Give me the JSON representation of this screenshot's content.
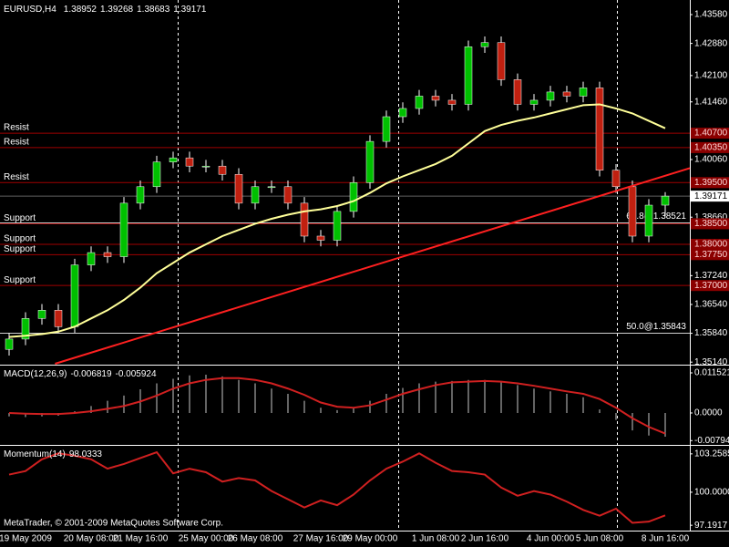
{
  "chart_data": [
    {
      "type": "candlestick",
      "title": "EURUSD,H4",
      "categories": [
        null,
        "19 May 2009",
        null,
        null,
        null,
        "20 May 08:00",
        null,
        null,
        "21 May 16:00",
        null,
        null,
        null,
        "25 May 00:00",
        null,
        null,
        "26 May 08:00",
        null,
        null,
        null,
        "27 May 16:00",
        null,
        null,
        "29 May 00:00",
        null,
        null,
        null,
        "1 Jun 08:00",
        null,
        null,
        "2 Jun 16:00",
        null,
        null,
        null,
        "4 Jun 00:00",
        null,
        null,
        "5 Jun 08:00",
        null,
        null,
        null,
        "8 Jun 16:00"
      ],
      "open": [
        1.3545,
        1.357,
        1.362,
        1.364,
        1.36,
        1.375,
        1.378,
        1.377,
        1.39,
        1.394,
        1.4,
        1.401,
        1.399,
        1.399,
        1.397,
        1.39,
        1.394,
        1.394,
        1.39,
        1.382,
        1.381,
        1.388,
        1.395,
        1.405,
        1.411,
        1.413,
        1.416,
        1.415,
        1.414,
        1.428,
        1.429,
        1.42,
        1.414,
        1.415,
        1.417,
        1.416,
        1.418,
        1.398,
        1.394,
        1.382,
        1.38952
      ],
      "high": [
        1.3585,
        1.3635,
        1.3655,
        1.3655,
        1.3765,
        1.3795,
        1.3795,
        1.3915,
        1.3955,
        1.4015,
        1.4025,
        1.4025,
        1.4005,
        1.4005,
        1.3985,
        1.3955,
        1.3955,
        1.3955,
        1.3915,
        1.3835,
        1.3895,
        1.3965,
        1.4065,
        1.4125,
        1.4145,
        1.4175,
        1.4175,
        1.4165,
        1.4295,
        1.4305,
        1.4305,
        1.4215,
        1.4165,
        1.4185,
        1.4185,
        1.4195,
        1.4195,
        1.3995,
        1.3955,
        1.391,
        1.39268
      ],
      "low": [
        1.353,
        1.3555,
        1.3605,
        1.3585,
        1.3585,
        1.3735,
        1.3755,
        1.3755,
        1.3885,
        1.3925,
        1.3985,
        1.3975,
        1.3975,
        1.3955,
        1.3885,
        1.3885,
        1.3925,
        1.3885,
        1.3805,
        1.3795,
        1.3795,
        1.3865,
        1.3935,
        1.4035,
        1.4095,
        1.4115,
        1.4135,
        1.4125,
        1.4125,
        1.4265,
        1.4185,
        1.4125,
        1.4125,
        1.4135,
        1.4145,
        1.4145,
        1.3965,
        1.3925,
        1.3805,
        1.3805,
        1.38683
      ],
      "close": [
        1.357,
        1.362,
        1.364,
        1.36,
        1.375,
        1.378,
        1.377,
        1.39,
        1.394,
        1.4,
        1.401,
        1.399,
        1.399,
        1.397,
        1.39,
        1.394,
        1.394,
        1.39,
        1.382,
        1.381,
        1.388,
        1.395,
        1.405,
        1.411,
        1.413,
        1.416,
        1.415,
        1.414,
        1.428,
        1.429,
        1.42,
        1.414,
        1.415,
        1.417,
        1.416,
        1.418,
        1.398,
        1.394,
        1.382,
        1.38952,
        1.39171
      ],
      "up_color": "#00c000",
      "down_color": "#c02010",
      "ma": {
        "color": "#ffff99",
        "values": [
          1.3575,
          1.3578,
          1.3582,
          1.3588,
          1.36,
          1.362,
          1.364,
          1.3665,
          1.3695,
          1.373,
          1.3755,
          1.378,
          1.38,
          1.382,
          1.3835,
          1.385,
          1.3862,
          1.3872,
          1.388,
          1.3885,
          1.3893,
          1.3905,
          1.3925,
          1.3948,
          1.3965,
          1.398,
          1.3995,
          1.4015,
          1.4045,
          1.4075,
          1.409,
          1.41,
          1.4108,
          1.4118,
          1.4128,
          1.4138,
          1.414,
          1.413,
          1.4118,
          1.41,
          1.4082
        ]
      },
      "trend": {
        "color": "#ff2020",
        "x": [
          2.8,
          41.5
        ],
        "y": [
          1.351,
          1.3985
        ]
      },
      "levels": [
        {
          "label": "Resist",
          "value": 1.407,
          "value_label": "1.40700"
        },
        {
          "label": "Resist",
          "value": 1.4035,
          "value_label": "1.40350"
        },
        {
          "label": "Resist",
          "value": 1.395,
          "value_label": "1.39500"
        },
        {
          "label": "Support",
          "value": 1.385,
          "value_label": "1.38500"
        },
        {
          "label": "Support",
          "value": 1.38,
          "value_label": "1.38000"
        },
        {
          "label": "Support",
          "value": 1.3775,
          "value_label": "1.37750"
        },
        {
          "label": "Support",
          "value": 1.37,
          "value_label": "1.37000"
        }
      ],
      "fibs": [
        {
          "label": "61.8@1.38521",
          "value": 1.38521
        },
        {
          "label": "50.0@1.35843",
          "value": 1.35843
        }
      ],
      "ylim": [
        1.351,
        1.4389
      ],
      "yticks": [
        {
          "value": 1.4358,
          "label": "1.43580"
        },
        {
          "value": 1.4288,
          "label": "1.42880"
        },
        {
          "value": 1.421,
          "label": "1.42100"
        },
        {
          "value": 1.4146,
          "label": "1.41460"
        },
        {
          "value": 1.4006,
          "label": "1.40060"
        },
        {
          "value": 1.3866,
          "label": "1.38660"
        },
        {
          "value": 1.3724,
          "label": "1.37240"
        },
        {
          "value": 1.3654,
          "label": "1.36540"
        },
        {
          "value": 1.3584,
          "label": "1.35840"
        },
        {
          "value": 1.3514,
          "label": "1.35140"
        }
      ]
    },
    {
      "type": "macd",
      "title": "MACD(12,26,9)",
      "series": [
        {
          "color": "#c8c8c8",
          "values": [
            -0.001,
            -0.0012,
            -0.001,
            -0.0008,
            0.0005,
            0.002,
            0.0035,
            0.005,
            0.0068,
            0.0085,
            0.0098,
            0.0108,
            0.011,
            0.0105,
            0.0095,
            0.0085,
            0.007,
            0.0055,
            0.0035,
            0.0015,
            0.0008,
            0.0015,
            0.0035,
            0.0055,
            0.0072,
            0.0085,
            0.009,
            0.0092,
            0.0095,
            0.0095,
            0.009,
            0.008,
            0.007,
            0.0062,
            0.0055,
            0.0045,
            0.001,
            -0.002,
            -0.005,
            -0.0065,
            -0.006819
          ]
        },
        {
          "color": "#d02020",
          "values": [
            0,
            -0.0002,
            -0.0003,
            -0.0003,
            0,
            0.0005,
            0.0012,
            0.002,
            0.0033,
            0.005,
            0.007,
            0.0085,
            0.0095,
            0.01,
            0.01,
            0.0095,
            0.0085,
            0.007,
            0.0052,
            0.003,
            0.0018,
            0.0015,
            0.0022,
            0.0038,
            0.0055,
            0.0068,
            0.008,
            0.0088,
            0.009,
            0.0092,
            0.009,
            0.0085,
            0.0078,
            0.007,
            0.0062,
            0.0055,
            0.004,
            0.0015,
            -0.0015,
            -0.004,
            -0.005924
          ]
        }
      ],
      "ylim": [
        -0.00891,
        0.01309
      ],
      "yticks": [
        0.011521,
        {
          "value": 0,
          "label": "0.0000"
        },
        -0.00794
      ]
    },
    {
      "type": "line",
      "title": "Momentum(14)",
      "color": "#d02020",
      "values": [
        101.5,
        101.8,
        102.8,
        103.3,
        103.1,
        102.8,
        102,
        102.4,
        102.9,
        103.4,
        101.6,
        102,
        101.7,
        100.9,
        101.2,
        101,
        100.1,
        99.4,
        98.7,
        99.3,
        98.9,
        99.8,
        101,
        102,
        102.6,
        103.3,
        102.5,
        101.8,
        101.7,
        101.5,
        100.4,
        99.7,
        100.1,
        99.8,
        99.2,
        98.5,
        98,
        98.6,
        97.4,
        97.5,
        98.0333
      ],
      "ylim": [
        96.817,
        103.789
      ],
      "yticks": [
        103.2585,
        {
          "value": 100,
          "label": "100.0000"
        },
        97.1917
      ],
      "footer": "MetaTrader, © 2001-2009 MetaQuotes Software Corp."
    }
  ]
}
